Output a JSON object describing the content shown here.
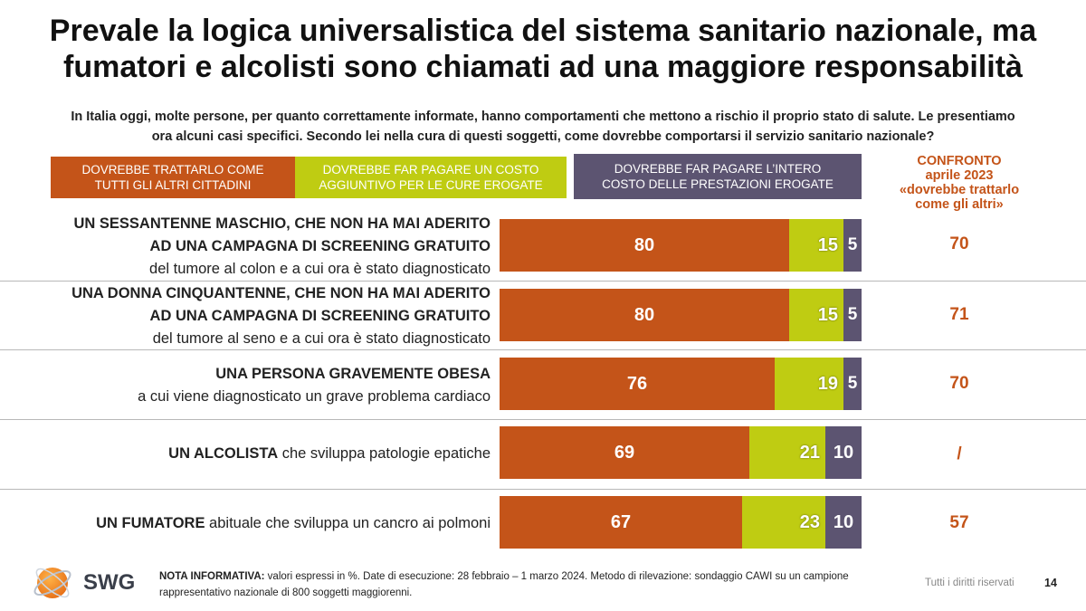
{
  "title": {
    "line1": "Prevale la logica universalistica del sistema sanitario nazionale, ma",
    "line2": "fumatori e alcolisti sono chiamati ad una maggiore responsabilità"
  },
  "subtitle": {
    "line1": "In Italia oggi, molte persone, per quanto correttamente informate, hanno comportamenti che mettono a rischio il proprio stato di salute. Le presentiamo",
    "line2": "ora alcuni casi specifici. Secondo lei nella cura di questi soggetti, come dovrebbe comportarsi il servizio sanitario nazionale?"
  },
  "legend": [
    {
      "line1": "DOVREBBE TRATTARLO COME",
      "line2": "TUTTI GLI ALTRI CITTADINI",
      "color": "#c45419"
    },
    {
      "line1": "DOVREBBE FAR PAGARE UN COSTO",
      "line2": "AGGIUNTIVO PER LE CURE EROGATE",
      "color": "#bfcc12"
    },
    {
      "line1": "DOVREBBE FAR PAGARE L’INTERO",
      "line2": "COSTO DELLE PRESTAZIONI EROGATE",
      "color": "#5c5471"
    }
  ],
  "confronto": {
    "line1": "CONFRONTO",
    "line2": "aprile 2023",
    "line3": "«dovrebbe trattarlo",
    "line4": "come gli altri»"
  },
  "rows": [
    {
      "bold1": "UN SESSANTENNE MASCHIO, CHE NON HA MAI ADERITO",
      "bold2": "AD UNA CAMPAGNA DI SCREENING GRATUITO",
      "normal": "del tumore al colon e a cui ora è stato diagnosticato",
      "comparison": "70"
    },
    {
      "bold1": "UNA DONNA CINQUANTENNE, CHE NON HA MAI ADERITO",
      "bold2": "AD UNA CAMPAGNA DI SCREENING GRATUITO",
      "normal": "del tumore al seno e a cui ora è stato diagnosticato",
      "comparison": "71"
    },
    {
      "bold1": "UNA PERSONA GRAVEMENTE OBESA",
      "normal": "a cui viene diagnosticato un grave problema cardiaco",
      "comparison": "70"
    },
    {
      "bold": "UN ALCOLISTA",
      "normal": " che sviluppa patologie epatiche",
      "comparison": "/"
    },
    {
      "bold": "UN FUMATORE",
      "normal": " abituale che sviluppa un cancro ai polmoni",
      "comparison": "57"
    }
  ],
  "chart_data": {
    "type": "bar",
    "orientation": "horizontal-stacked-100",
    "categories": [
      "UN SESSANTENNE MASCHIO, CHE NON HA MAI ADERITO AD UNA CAMPAGNA DI SCREENING GRATUITO del tumore al colon e a cui ora è stato diagnosticato",
      "UNA DONNA CINQUANTENNE, CHE NON HA MAI ADERITO AD UNA CAMPAGNA DI SCREENING GRATUITO del tumore al seno e a cui ora è stato diagnosticato",
      "UNA PERSONA GRAVEMENTE OBESA a cui viene diagnosticato un grave problema cardiaco",
      "UN ALCOLISTA che sviluppa patologie epatiche",
      "UN FUMATORE abituale che sviluppa un cancro ai polmoni"
    ],
    "series": [
      {
        "name": "DOVREBBE TRATTARLO COME TUTTI GLI ALTRI CITTADINI",
        "values": [
          80,
          80,
          76,
          69,
          67
        ],
        "color": "#c45419"
      },
      {
        "name": "DOVREBBE FAR PAGARE UN COSTO AGGIUNTIVO PER LE CURE EROGATE",
        "values": [
          15,
          15,
          19,
          21,
          23
        ],
        "color": "#bfcc12"
      },
      {
        "name": "DOVREBBE FAR PAGARE L’INTERO COSTO DELLE PRESTAZIONI EROGATE",
        "values": [
          5,
          5,
          5,
          10,
          10
        ],
        "color": "#5c5471"
      }
    ],
    "comparison_label": "CONFRONTO aprile 2023 «dovrebbe trattarlo come gli altri»",
    "comparison_values": [
      "70",
      "71",
      "70",
      "/",
      "57"
    ],
    "xlim": [
      0,
      100
    ],
    "unit": "%"
  },
  "footer": {
    "logo": "SWG",
    "note_label": "NOTA INFORMATIVA:",
    "note_text": " valori espressi in %. Date di esecuzione: 28 febbraio – 1 marzo 2024. Metodo di rilevazione: sondaggio CAWI su un campione",
    "note_line2": "rappresentativo nazionale di 800 soggetti maggiorenni.",
    "rights": "Tutti i diritti riservati",
    "page": "14"
  }
}
